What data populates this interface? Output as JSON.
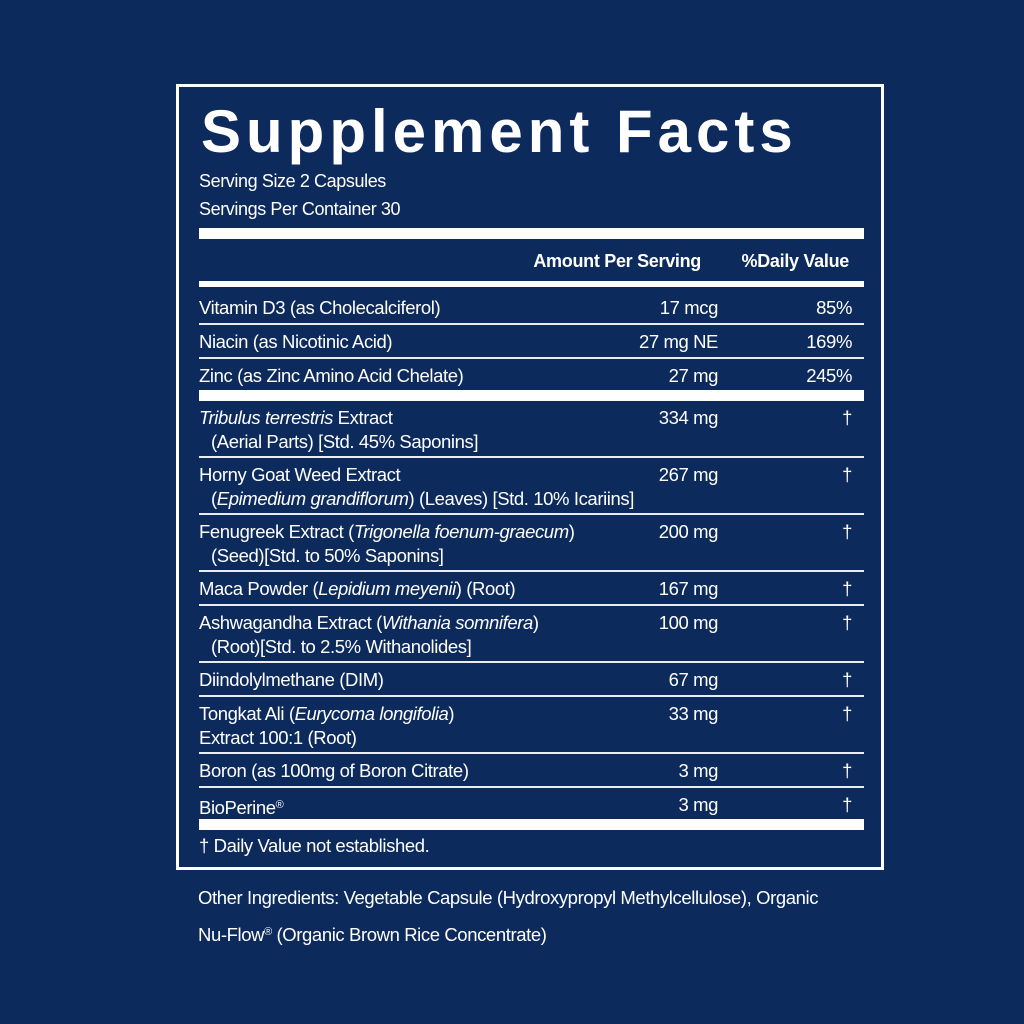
{
  "title": "Supplement Facts",
  "serving_size": "Serving Size 2 Capsules",
  "servings_per_container": "Servings Per Container 30",
  "header": {
    "amount": "Amount Per Serving",
    "dv": "%Daily Value"
  },
  "colors": {
    "background": "#0d2a5c",
    "foreground": "#ffffff"
  },
  "vitamins": [
    {
      "line1": [
        {
          "t": "Vitamin D3 (as Cholecalciferol)"
        }
      ],
      "amount": "17 mcg",
      "dv": "85%"
    },
    {
      "line1": [
        {
          "t": "Niacin (as Nicotinic Acid)"
        }
      ],
      "amount": "27 mg NE",
      "dv": "169%"
    },
    {
      "line1": [
        {
          "t": "Zinc (as Zinc Amino Acid Chelate)"
        }
      ],
      "amount": "27 mg",
      "dv": "245%"
    }
  ],
  "ingredients": [
    {
      "line1": [
        {
          "t": "Tribulus terrestris",
          "i": true
        },
        {
          "t": " Extract"
        }
      ],
      "line2": [
        {
          "t": "(Aerial Parts) [Std. 45% Saponins]"
        }
      ],
      "amount": "334 mg",
      "dv": "†"
    },
    {
      "line1": [
        {
          "t": "Horny Goat Weed Extract"
        }
      ],
      "line2": [
        {
          "t": "("
        },
        {
          "t": "Epimedium grandiflorum",
          "i": true
        },
        {
          "t": ") (Leaves) [Std. 10% Icariins]"
        }
      ],
      "amount": "267 mg",
      "dv": "†"
    },
    {
      "line1": [
        {
          "t": "Fenugreek Extract ("
        },
        {
          "t": "Trigonella foenum-graecum",
          "i": true
        },
        {
          "t": ")"
        }
      ],
      "line2": [
        {
          "t": "(Seed)[Std. to 50% Saponins]"
        }
      ],
      "amount": "200 mg",
      "dv": "†"
    },
    {
      "line1": [
        {
          "t": "Maca Powder ("
        },
        {
          "t": "Lepidium meyenii",
          "i": true
        },
        {
          "t": ") (Root)"
        }
      ],
      "amount": "167 mg",
      "dv": "†"
    },
    {
      "line1": [
        {
          "t": "Ashwagandha Extract ("
        },
        {
          "t": "Withania somnifera",
          "i": true
        },
        {
          "t": ")"
        }
      ],
      "line2": [
        {
          "t": "(Root)[Std. to 2.5% Withanolides]"
        }
      ],
      "amount": "100 mg",
      "dv": "†"
    },
    {
      "line1": [
        {
          "t": "Diindolylmethane (DIM)"
        }
      ],
      "amount": "67 mg",
      "dv": "†"
    },
    {
      "line1": [
        {
          "t": "Tongkat Ali ("
        },
        {
          "t": "Eurycoma longifolia",
          "i": true
        },
        {
          "t": ")"
        }
      ],
      "line2": [
        {
          "t": "Extract 100:1 (Root)"
        }
      ],
      "noindent": true,
      "amount": "33 mg",
      "dv": "†"
    },
    {
      "line1": [
        {
          "t": "Boron (as 100mg of Boron Citrate)"
        }
      ],
      "amount": "3 mg",
      "dv": "†"
    },
    {
      "line1": [
        {
          "t": "BioPerine"
        },
        {
          "t": "®",
          "sup": true
        }
      ],
      "amount": "3 mg",
      "dv": "†"
    }
  ],
  "footnote": "† Daily Value not established.",
  "other_ingredients": {
    "line1": "Other Ingredients: Vegetable Capsule (Hydroxypropyl Methylcellulose), Organic",
    "line2a": "Nu-Flow",
    "reg": "®",
    "line2b": " (Organic Brown Rice Concentrate)"
  }
}
